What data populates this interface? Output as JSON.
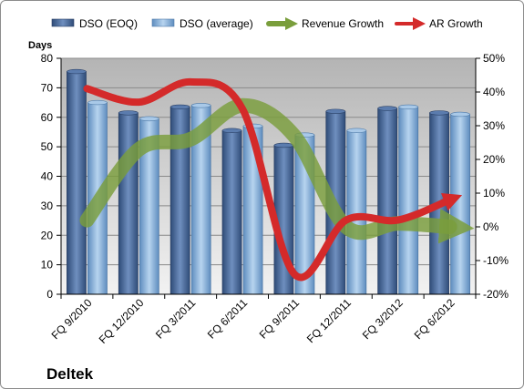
{
  "chart_data": {
    "type": "bar",
    "title": "",
    "brand_label": "Deltek",
    "y_left_label": "Days",
    "y_left_lim": [
      0,
      80
    ],
    "y_left_ticks": [
      0,
      10,
      20,
      30,
      40,
      50,
      60,
      70,
      80
    ],
    "y_right_lim": [
      -20,
      50
    ],
    "y_right_ticks": [
      "-20%",
      "-10%",
      "0%",
      "10%",
      "20%",
      "30%",
      "40%",
      "50%"
    ],
    "y_right_values": [
      -20,
      -10,
      0,
      10,
      20,
      30,
      40,
      50
    ],
    "categories": [
      "FQ 9/2010",
      "FQ 12/2010",
      "FQ 3/2011",
      "FQ 6/2011",
      "FQ 9/2011",
      "FQ 12/2011",
      "FQ 3/2012",
      "FQ 6/2012"
    ],
    "series": [
      {
        "name": "DSO (EOQ)",
        "kind": "bar",
        "axis": "left",
        "color": "#4a6a9c",
        "values": [
          75.5,
          61.5,
          63.5,
          55.5,
          50.5,
          62,
          63,
          61.5
        ]
      },
      {
        "name": "DSO (average)",
        "kind": "bar",
        "axis": "left",
        "color": "#8eb6dc",
        "values": [
          65,
          59.5,
          64,
          57,
          54,
          55.5,
          63.5,
          61
        ]
      },
      {
        "name": "Revenue Growth",
        "kind": "line",
        "axis": "right",
        "color": "#7a9e3c",
        "values": [
          2,
          23,
          26,
          36,
          27,
          0,
          1,
          0
        ]
      },
      {
        "name": "AR Growth",
        "kind": "line",
        "axis": "right",
        "color": "#d42a2a",
        "values": [
          41,
          37,
          43,
          35,
          -14,
          2,
          2,
          8
        ]
      }
    ],
    "grid": true,
    "legend_position": "top"
  }
}
